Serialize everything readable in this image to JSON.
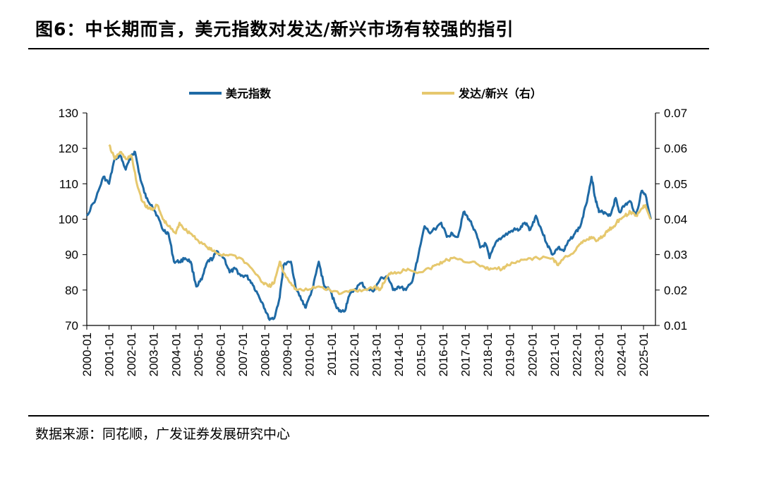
{
  "figure": {
    "title": "图6：中长期而言，美元指数对发达/新兴市场有较强的指引",
    "source": "数据来源：同花顺，广发证券发展研究中心"
  },
  "colors": {
    "usd": "#1f6aa5",
    "ratio": "#e6c86e",
    "axis": "#000000"
  },
  "chart_data": {
    "type": "line",
    "title": "",
    "x_type": "date",
    "x_ticks": [
      "2000-01",
      "2001-01",
      "2002-01",
      "2003-01",
      "2004-01",
      "2005-01",
      "2006-01",
      "2007-01",
      "2008-01",
      "2009-01",
      "2010-01",
      "2011-01",
      "2012-01",
      "2013-01",
      "2014-01",
      "2015-01",
      "2016-01",
      "2017-01",
      "2018-01",
      "2019-01",
      "2020-01",
      "2021-01",
      "2022-01",
      "2023-01",
      "2024-01",
      "2025-01"
    ],
    "x_range": [
      "2000-01",
      "2025-05"
    ],
    "y_left": {
      "range": [
        70,
        130
      ],
      "ticks": [
        "70",
        "80",
        "90",
        "100",
        "110",
        "120",
        "130"
      ]
    },
    "y_right": {
      "range": [
        0.01,
        0.07
      ],
      "ticks": [
        "0.01",
        "0.02",
        "0.03",
        "0.04",
        "0.05",
        "0.06",
        "0.07"
      ]
    },
    "grid": false,
    "legend_position": "top",
    "series": [
      {
        "name": "美元指数",
        "axis": "left",
        "color": "#1f6aa5",
        "points": [
          [
            "2000-01",
            101
          ],
          [
            "2000-06",
            106
          ],
          [
            "2000-10",
            112
          ],
          [
            "2001-01",
            110
          ],
          [
            "2001-04",
            117
          ],
          [
            "2001-07",
            118
          ],
          [
            "2001-10",
            114
          ],
          [
            "2002-01",
            118
          ],
          [
            "2002-03",
            119
          ],
          [
            "2002-06",
            111
          ],
          [
            "2002-09",
            106
          ],
          [
            "2002-12",
            104
          ],
          [
            "2003-03",
            101
          ],
          [
            "2003-06",
            97
          ],
          [
            "2003-09",
            96
          ],
          [
            "2003-12",
            88
          ],
          [
            "2004-03",
            88
          ],
          [
            "2004-06",
            89
          ],
          [
            "2004-09",
            88
          ],
          [
            "2004-12",
            81
          ],
          [
            "2005-03",
            83
          ],
          [
            "2005-06",
            88
          ],
          [
            "2005-09",
            89
          ],
          [
            "2005-11",
            91
          ],
          [
            "2006-03",
            89
          ],
          [
            "2006-06",
            85
          ],
          [
            "2006-09",
            86
          ],
          [
            "2006-12",
            84
          ],
          [
            "2007-03",
            84
          ],
          [
            "2007-06",
            82
          ],
          [
            "2007-09",
            79
          ],
          [
            "2007-12",
            76
          ],
          [
            "2008-03",
            72
          ],
          [
            "2008-06",
            72
          ],
          [
            "2008-09",
            78
          ],
          [
            "2008-11",
            87
          ],
          [
            "2009-03",
            88
          ],
          [
            "2009-06",
            80
          ],
          [
            "2009-09",
            77
          ],
          [
            "2009-11",
            75
          ],
          [
            "2010-03",
            81
          ],
          [
            "2010-06",
            88
          ],
          [
            "2010-09",
            81
          ],
          [
            "2010-12",
            80
          ],
          [
            "2011-03",
            76
          ],
          [
            "2011-05",
            74
          ],
          [
            "2011-08",
            74
          ],
          [
            "2011-10",
            78
          ],
          [
            "2012-01",
            80
          ],
          [
            "2012-05",
            82
          ],
          [
            "2012-08",
            80
          ],
          [
            "2012-12",
            80
          ],
          [
            "2013-03",
            83
          ],
          [
            "2013-07",
            84
          ],
          [
            "2013-10",
            80
          ],
          [
            "2014-01",
            81
          ],
          [
            "2014-05",
            80
          ],
          [
            "2014-08",
            82
          ],
          [
            "2014-11",
            88
          ],
          [
            "2015-03",
            98
          ],
          [
            "2015-06",
            96
          ],
          [
            "2015-12",
            99
          ],
          [
            "2016-03",
            95
          ],
          [
            "2016-06",
            96
          ],
          [
            "2016-09",
            95
          ],
          [
            "2016-12",
            102
          ],
          [
            "2017-03",
            100
          ],
          [
            "2017-06",
            97
          ],
          [
            "2017-09",
            92
          ],
          [
            "2017-12",
            93
          ],
          [
            "2018-02",
            89
          ],
          [
            "2018-06",
            94
          ],
          [
            "2018-09",
            95
          ],
          [
            "2018-12",
            96
          ],
          [
            "2019-03",
            97
          ],
          [
            "2019-06",
            97
          ],
          [
            "2019-09",
            99
          ],
          [
            "2019-12",
            97
          ],
          [
            "2020-03",
            101
          ],
          [
            "2020-06",
            97
          ],
          [
            "2020-09",
            93
          ],
          [
            "2020-12",
            90
          ],
          [
            "2021-03",
            92
          ],
          [
            "2021-06",
            91
          ],
          [
            "2021-09",
            94
          ],
          [
            "2021-12",
            96
          ],
          [
            "2022-03",
            98
          ],
          [
            "2022-06",
            104
          ],
          [
            "2022-09",
            112
          ],
          [
            "2022-11",
            106
          ],
          [
            "2023-01",
            102
          ],
          [
            "2023-04",
            102
          ],
          [
            "2023-07",
            101
          ],
          [
            "2023-10",
            106
          ],
          [
            "2023-12",
            102
          ],
          [
            "2024-03",
            104
          ],
          [
            "2024-06",
            105
          ],
          [
            "2024-09",
            101
          ],
          [
            "2024-12",
            108
          ],
          [
            "2025-02",
            107
          ],
          [
            "2025-05",
            100
          ]
        ]
      },
      {
        "name": "发达/新兴（右）",
        "axis": "right",
        "color": "#e6c86e",
        "points": [
          [
            "2001-01",
            0.061
          ],
          [
            "2001-04",
            0.057
          ],
          [
            "2001-07",
            0.059
          ],
          [
            "2001-10",
            0.057
          ],
          [
            "2002-01",
            0.058
          ],
          [
            "2002-04",
            0.05
          ],
          [
            "2002-07",
            0.045
          ],
          [
            "2002-10",
            0.043
          ],
          [
            "2003-01",
            0.043
          ],
          [
            "2003-03",
            0.044
          ],
          [
            "2003-06",
            0.04
          ],
          [
            "2003-09",
            0.038
          ],
          [
            "2004-01",
            0.036
          ],
          [
            "2004-03",
            0.039
          ],
          [
            "2004-06",
            0.037
          ],
          [
            "2004-09",
            0.036
          ],
          [
            "2005-01",
            0.034
          ],
          [
            "2005-06",
            0.032
          ],
          [
            "2005-09",
            0.031
          ],
          [
            "2006-01",
            0.03
          ],
          [
            "2006-06",
            0.03
          ],
          [
            "2006-12",
            0.029
          ],
          [
            "2007-06",
            0.026
          ],
          [
            "2007-12",
            0.022
          ],
          [
            "2008-03",
            0.021
          ],
          [
            "2008-06",
            0.022
          ],
          [
            "2008-09",
            0.028
          ],
          [
            "2008-11",
            0.025
          ],
          [
            "2009-03",
            0.022
          ],
          [
            "2009-06",
            0.02
          ],
          [
            "2009-12",
            0.02
          ],
          [
            "2010-06",
            0.021
          ],
          [
            "2010-12",
            0.02
          ],
          [
            "2011-06",
            0.019
          ],
          [
            "2011-12",
            0.02
          ],
          [
            "2012-06",
            0.02
          ],
          [
            "2012-12",
            0.021
          ],
          [
            "2013-03",
            0.02
          ],
          [
            "2013-06",
            0.023
          ],
          [
            "2013-09",
            0.025
          ],
          [
            "2014-01",
            0.025
          ],
          [
            "2014-06",
            0.026
          ],
          [
            "2014-12",
            0.025
          ],
          [
            "2015-06",
            0.026
          ],
          [
            "2015-09",
            0.027
          ],
          [
            "2016-01",
            0.028
          ],
          [
            "2016-06",
            0.029
          ],
          [
            "2016-12",
            0.028
          ],
          [
            "2017-06",
            0.028
          ],
          [
            "2017-12",
            0.026
          ],
          [
            "2018-03",
            0.026
          ],
          [
            "2018-09",
            0.026
          ],
          [
            "2018-12",
            0.027
          ],
          [
            "2019-06",
            0.028
          ],
          [
            "2019-12",
            0.029
          ],
          [
            "2020-06",
            0.029
          ],
          [
            "2020-12",
            0.029
          ],
          [
            "2021-03",
            0.027
          ],
          [
            "2021-06",
            0.029
          ],
          [
            "2021-12",
            0.031
          ],
          [
            "2022-03",
            0.033
          ],
          [
            "2022-06",
            0.034
          ],
          [
            "2022-09",
            0.035
          ],
          [
            "2022-12",
            0.034
          ],
          [
            "2023-03",
            0.035
          ],
          [
            "2023-06",
            0.037
          ],
          [
            "2023-09",
            0.038
          ],
          [
            "2023-12",
            0.04
          ],
          [
            "2024-03",
            0.041
          ],
          [
            "2024-06",
            0.042
          ],
          [
            "2024-09",
            0.041
          ],
          [
            "2024-12",
            0.043
          ],
          [
            "2025-02",
            0.044
          ],
          [
            "2025-05",
            0.04
          ]
        ]
      }
    ]
  }
}
